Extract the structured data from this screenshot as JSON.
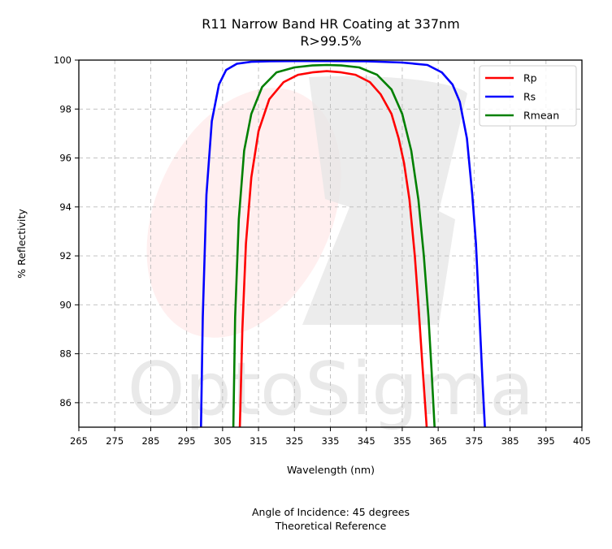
{
  "chart_data": {
    "type": "line",
    "title": "R11 Narrow Band HR Coating at 337nm",
    "subtitle": "R>99.5%",
    "xlabel": "Wavelength (nm)",
    "ylabel": "% Reflectivity",
    "xlim": [
      265,
      405
    ],
    "ylim": [
      85,
      100
    ],
    "xticks": [
      265,
      275,
      285,
      295,
      305,
      315,
      325,
      335,
      345,
      355,
      365,
      375,
      385,
      395,
      405
    ],
    "yticks": [
      86,
      88,
      90,
      92,
      94,
      96,
      98,
      100
    ],
    "grid": true,
    "legend_position": "top-right",
    "series": [
      {
        "name": "Rp",
        "color": "#ff0000",
        "x": [
          309.8,
          310.5,
          311.5,
          313,
          315,
          318,
          322,
          326,
          330,
          334,
          338,
          342,
          346,
          349,
          352,
          354,
          355.5,
          357,
          358.5,
          359.5,
          360.5,
          361.2,
          361.8
        ],
        "y": [
          85,
          89,
          92.5,
          95.2,
          97.1,
          98.4,
          99.1,
          99.4,
          99.5,
          99.55,
          99.5,
          99.4,
          99.1,
          98.6,
          97.8,
          96.8,
          95.8,
          94.3,
          92,
          90,
          87.8,
          86.3,
          85
        ]
      },
      {
        "name": "Rs",
        "color": "#0000ff",
        "x": [
          299,
          299.5,
          300.5,
          302,
          304,
          306,
          309,
          313,
          318,
          325,
          335,
          345,
          355,
          362,
          366,
          369,
          371,
          373,
          374.5,
          375.5,
          376.5,
          377.3,
          378
        ],
        "y": [
          85,
          89.5,
          94.5,
          97.5,
          99,
          99.6,
          99.85,
          99.93,
          99.95,
          99.96,
          99.96,
          99.95,
          99.9,
          99.8,
          99.5,
          99,
          98.3,
          96.8,
          94.5,
          92.5,
          89.5,
          87,
          85
        ]
      },
      {
        "name": "Rmean",
        "color": "#008000",
        "x": [
          308,
          308.5,
          309.5,
          311,
          313,
          316,
          320,
          325,
          330,
          334,
          338,
          343,
          348,
          352,
          355,
          357.5,
          359.5,
          361,
          362.3,
          363.2,
          364
        ],
        "y": [
          85,
          89.5,
          93.5,
          96.3,
          97.8,
          98.9,
          99.5,
          99.7,
          99.78,
          99.8,
          99.78,
          99.7,
          99.4,
          98.8,
          97.8,
          96.3,
          94.3,
          92,
          89.5,
          87.2,
          85
        ]
      }
    ],
    "annotations": [
      "Angle of Incidence: 45 degrees",
      "Theoretical Reference"
    ],
    "watermark": "OptoSigma"
  }
}
